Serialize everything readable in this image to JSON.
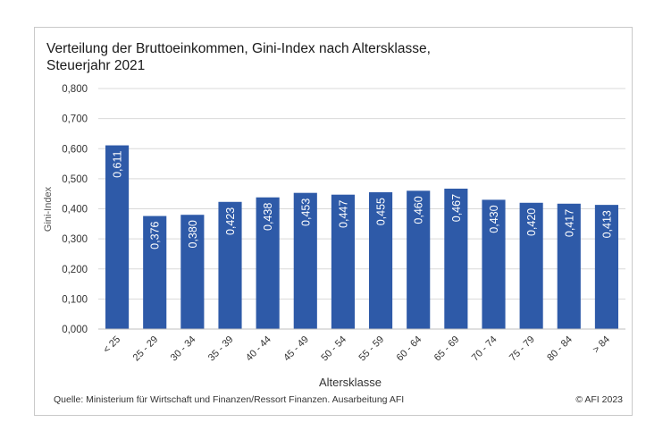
{
  "chart_data": {
    "type": "bar",
    "title": [
      "Verteilung der Bruttoeinkommen, Gini-Index nach Altersklasse,",
      "Steuerjahr 2021"
    ],
    "xlabel": "Altersklasse",
    "ylabel": "Gini-Index",
    "ylim": [
      0,
      0.8
    ],
    "yticks": [
      "0,000",
      "0,100",
      "0,200",
      "0,300",
      "0,400",
      "0,500",
      "0,600",
      "0,700",
      "0,800"
    ],
    "categories": [
      "< 25",
      "25 - 29",
      "30 - 34",
      "35 - 39",
      "40 - 44",
      "45 - 49",
      "50 - 54",
      "55 - 59",
      "60 - 64",
      "65 - 69",
      "70 - 74",
      "75 - 79",
      "80 - 84",
      "> 84"
    ],
    "values": [
      0.611,
      0.376,
      0.38,
      0.423,
      0.438,
      0.453,
      0.447,
      0.455,
      0.46,
      0.467,
      0.43,
      0.42,
      0.417,
      0.413
    ],
    "data_labels": [
      "0,611",
      "0,376",
      "0,380",
      "0,423",
      "0,438",
      "0,453",
      "0,447",
      "0,455",
      "0,460",
      "0,467",
      "0,430",
      "0,420",
      "0,417",
      "0,413"
    ],
    "bar_color": "#2e5aa8",
    "grid": true,
    "legend": "none"
  },
  "footer": {
    "source": "Quelle: Ministerium für Wirtschaft und Finanzen/Ressort Finanzen. Ausarbeitung AFI",
    "copyright": "© AFI 2023"
  }
}
